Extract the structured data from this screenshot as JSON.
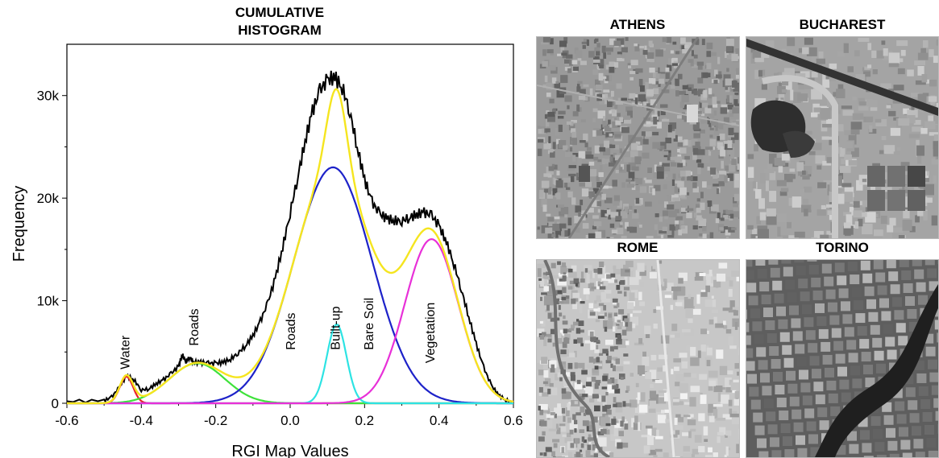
{
  "chart_data": {
    "type": "line",
    "title": "CUMULATIVE HISTOGRAM",
    "title_lines": [
      "CUMULATIVE",
      "HISTOGRAM"
    ],
    "xlabel": "RGI Map Values",
    "ylabel": "Frequency",
    "xlim": [
      -0.6,
      0.6
    ],
    "ylim": [
      0,
      35000
    ],
    "xticks": [
      -0.6,
      -0.4,
      -0.2,
      0.0,
      0.2,
      0.4,
      0.6
    ],
    "xtick_labels": [
      "-0.6",
      "-0.4",
      "-0.2",
      "0.0",
      "0.2",
      "0.4",
      "0.6"
    ],
    "yticks": [
      0,
      10000,
      20000,
      30000
    ],
    "ytick_labels": [
      "0",
      "10k",
      "20k",
      "30k"
    ],
    "grid": false,
    "histogram": {
      "color": "#000000",
      "points": [
        [
          -0.6,
          200
        ],
        [
          -0.5,
          250
        ],
        [
          -0.48,
          600
        ],
        [
          -0.46,
          1500
        ],
        [
          -0.44,
          2700
        ],
        [
          -0.42,
          2300
        ],
        [
          -0.4,
          1300
        ],
        [
          -0.38,
          1400
        ],
        [
          -0.36,
          1900
        ],
        [
          -0.34,
          2300
        ],
        [
          -0.32,
          2900
        ],
        [
          -0.3,
          3600
        ],
        [
          -0.29,
          4700
        ],
        [
          -0.28,
          4100
        ],
        [
          -0.27,
          4500
        ],
        [
          -0.26,
          4000
        ],
        [
          -0.24,
          4000
        ],
        [
          -0.22,
          3900
        ],
        [
          -0.2,
          3900
        ],
        [
          -0.18,
          4000
        ],
        [
          -0.16,
          4300
        ],
        [
          -0.14,
          4900
        ],
        [
          -0.12,
          5600
        ],
        [
          -0.1,
          6600
        ],
        [
          -0.08,
          8000
        ],
        [
          -0.06,
          9800
        ],
        [
          -0.04,
          12200
        ],
        [
          -0.02,
          15200
        ],
        [
          0.0,
          18600
        ],
        [
          0.02,
          22000
        ],
        [
          0.04,
          25500
        ],
        [
          0.06,
          28500
        ],
        [
          0.08,
          30500
        ],
        [
          0.1,
          31500
        ],
        [
          0.12,
          31800
        ],
        [
          0.14,
          30800
        ],
        [
          0.16,
          28500
        ],
        [
          0.18,
          25000
        ],
        [
          0.2,
          21800
        ],
        [
          0.22,
          19600
        ],
        [
          0.24,
          18500
        ],
        [
          0.26,
          18000
        ],
        [
          0.28,
          17800
        ],
        [
          0.3,
          17800
        ],
        [
          0.32,
          18100
        ],
        [
          0.34,
          18400
        ],
        [
          0.36,
          18600
        ],
        [
          0.38,
          18300
        ],
        [
          0.4,
          17300
        ],
        [
          0.42,
          15700
        ],
        [
          0.44,
          13600
        ],
        [
          0.46,
          11100
        ],
        [
          0.48,
          8400
        ],
        [
          0.5,
          5800
        ],
        [
          0.52,
          3500
        ],
        [
          0.54,
          1800
        ],
        [
          0.56,
          800
        ],
        [
          0.58,
          300
        ],
        [
          0.6,
          100
        ]
      ]
    },
    "series": [
      {
        "color": "#e8212b",
        "mu": -0.44,
        "sigma": 0.018,
        "amp": 2600
      },
      {
        "color": "#3ee23a",
        "mu": -0.25,
        "sigma": 0.075,
        "amp": 3900
      },
      {
        "color": "#1d22c9",
        "mu": 0.115,
        "sigma": 0.105,
        "amp": 23000
      },
      {
        "color": "#2de3e3",
        "mu": 0.125,
        "sigma": 0.026,
        "amp": 7700
      },
      {
        "color": "#e830d8",
        "mu": 0.38,
        "sigma": 0.072,
        "amp": 16000
      }
    ],
    "fit": {
      "color": "#f5e51f"
    },
    "annotations": [
      {
        "text": "Water",
        "x": -0.445,
        "y": 3300
      },
      {
        "text": "Roads",
        "x": -0.26,
        "y": 5600
      },
      {
        "text": "Roads",
        "x": 0.0,
        "y": 5200
      },
      {
        "text": "Built-up",
        "x": 0.12,
        "y": 5200
      },
      {
        "text": "Bare Soil",
        "x": 0.21,
        "y": 5200
      },
      {
        "text": "Vegetation",
        "x": 0.375,
        "y": 3900
      }
    ]
  },
  "photos": [
    {
      "label": "ATHENS",
      "pattern": "dense-grid"
    },
    {
      "label": "BUCHAREST",
      "pattern": "industrial"
    },
    {
      "label": "ROME",
      "pattern": "mixed-light"
    },
    {
      "label": "TORINO",
      "pattern": "blocks-river"
    }
  ]
}
